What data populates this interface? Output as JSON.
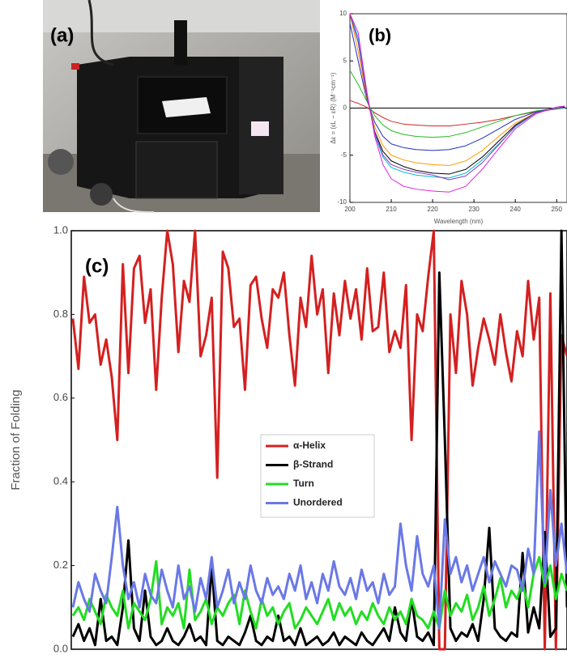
{
  "photo": {
    "label": "(a)"
  },
  "chart_data": [
    {
      "type": "line",
      "label": "(b)",
      "y_label": "Δε = (εL − εR) (M⁻¹cm⁻¹)",
      "x_label": "Wavelength (nm)",
      "x": [
        200,
        202,
        204,
        206,
        208,
        210,
        213,
        216,
        220,
        224,
        228,
        232,
        236,
        240,
        245,
        250,
        252
      ],
      "xlim": [
        200,
        252.5
      ],
      "xticks": [
        200,
        210,
        220,
        230,
        240,
        250
      ],
      "ylim": [
        -10,
        10
      ],
      "yticks": [
        -10,
        -5,
        0,
        5,
        10
      ],
      "zero_line": true,
      "series": [
        {
          "color": "#d42020",
          "values": [
            0.8,
            0.5,
            0.1,
            -0.5,
            -1.0,
            -1.4,
            -1.7,
            -1.8,
            -1.9,
            -1.9,
            -1.7,
            -1.5,
            -1.2,
            -0.8,
            -0.4,
            -0.1,
            0
          ]
        },
        {
          "color": "#22bb22",
          "values": [
            4,
            2.5,
            0.8,
            -0.8,
            -1.8,
            -2.4,
            -2.8,
            -3.0,
            -3.1,
            -3.0,
            -2.6,
            -2.0,
            -1.4,
            -0.8,
            -0.3,
            0,
            0
          ]
        },
        {
          "color": "#2030c0",
          "values": [
            9,
            5,
            1,
            -1.5,
            -3,
            -3.8,
            -4.2,
            -4.4,
            -4.5,
            -4.4,
            -4.0,
            -3.2,
            -2.2,
            -1.2,
            -0.4,
            0,
            0
          ]
        },
        {
          "color": "#ff9900",
          "values": [
            10,
            6,
            1.2,
            -2,
            -4,
            -5,
            -5.5,
            -5.8,
            -6,
            -6.1,
            -5.6,
            -4.5,
            -3,
            -1.6,
            -0.5,
            0,
            0
          ]
        },
        {
          "color": "#000000",
          "values": [
            10,
            7,
            1.5,
            -2.5,
            -4.6,
            -5.6,
            -6.2,
            -6.6,
            -6.9,
            -7.0,
            -6.5,
            -5.2,
            -3.5,
            -1.8,
            -0.5,
            0,
            0.1
          ]
        },
        {
          "color": "#00bbcc",
          "values": [
            10,
            7.5,
            1.8,
            -2.8,
            -5.2,
            -6.3,
            -6.8,
            -7.1,
            -7.3,
            -7.4,
            -6.9,
            -5.5,
            -3.8,
            -2.0,
            -0.5,
            0,
            0
          ]
        },
        {
          "color": "#8040c0",
          "values": [
            10,
            7,
            1.6,
            -2.6,
            -5,
            -6,
            -6.5,
            -6.8,
            -7.1,
            -7.6,
            -7.2,
            -5.8,
            -3.9,
            -1.9,
            -0.5,
            0.1,
            0.2
          ]
        },
        {
          "color": "#e020e0",
          "values": [
            10,
            8,
            2,
            -3,
            -6,
            -7.5,
            -8.3,
            -8.6,
            -8.8,
            -8.9,
            -8.3,
            -6.5,
            -4.3,
            -2.2,
            -0.6,
            0.1,
            0.2
          ]
        }
      ]
    },
    {
      "type": "line",
      "label": "(c)",
      "y_label": "Fraction of Folding",
      "categories": [
        null,
        null,
        null,
        null,
        null,
        null,
        null,
        null,
        null,
        null,
        null,
        null,
        null,
        null,
        null,
        null,
        null,
        null,
        null,
        null,
        null,
        null,
        null,
        null,
        null,
        null,
        null,
        null,
        null,
        null,
        null,
        null,
        null,
        null,
        null,
        null,
        null,
        null,
        null,
        null,
        null,
        null,
        null,
        null,
        null,
        null,
        null,
        null,
        null,
        null,
        null,
        null,
        null,
        null,
        null,
        null,
        null,
        null,
        null,
        null,
        null,
        null,
        null,
        null,
        null,
        null,
        null,
        null,
        null,
        null,
        null,
        null,
        null,
        null,
        null,
        null,
        null,
        null,
        null,
        null,
        null,
        null,
        null,
        null,
        null,
        null,
        null,
        null,
        null,
        null
      ],
      "ylim": [
        0,
        1
      ],
      "yticks": [
        {
          "value": 0,
          "label": "0.0"
        },
        0.2,
        0.4,
        0.6,
        0.8,
        {
          "value": 1,
          "label": "1.0"
        }
      ],
      "legend": "center",
      "series": [
        {
          "name": "α-Helix",
          "color": "#d42020",
          "values": [
            0.79,
            0.67,
            0.89,
            0.78,
            0.8,
            0.68,
            0.74,
            0.65,
            0.5,
            0.92,
            0.66,
            0.91,
            0.94,
            0.78,
            0.86,
            0.62,
            0.84,
            1.0,
            0.92,
            0.71,
            0.88,
            0.83,
            1.0,
            0.7,
            0.75,
            0.84,
            0.41,
            0.95,
            0.91,
            0.77,
            0.79,
            0.62,
            0.87,
            0.89,
            0.79,
            0.72,
            0.86,
            0.84,
            0.9,
            0.75,
            0.63,
            0.84,
            0.77,
            0.94,
            0.8,
            0.86,
            0.66,
            0.85,
            0.75,
            0.88,
            0.79,
            0.86,
            0.74,
            0.91,
            0.76,
            0.77,
            0.9,
            0.71,
            0.76,
            0.72,
            0.87,
            0.5,
            0.8,
            0.76,
            0.89,
            1.0,
            0.0,
            0.0,
            0.8,
            0.66,
            0.88,
            0.8,
            0.63,
            0.72,
            0.79,
            0.74,
            0.68,
            0.8,
            0.71,
            0.64,
            0.76,
            0.7,
            0.88,
            0.74,
            0.84,
            0.0,
            0.85,
            0.0,
            0.75,
            0.7
          ]
        },
        {
          "name": "β-Strand",
          "color": "#000000",
          "values": [
            0.03,
            0.06,
            0.02,
            0.05,
            0.01,
            0.12,
            0.02,
            0.03,
            0.01,
            0.1,
            0.26,
            0.05,
            0.02,
            0.14,
            0.03,
            0.01,
            0.02,
            0.05,
            0.02,
            0.01,
            0.03,
            0.06,
            0.02,
            0.03,
            0.01,
            0.2,
            0.02,
            0.01,
            0.03,
            0.02,
            0.01,
            0.04,
            0.08,
            0.02,
            0.01,
            0.03,
            0.02,
            0.08,
            0.02,
            0.03,
            0.01,
            0.05,
            0.01,
            0.02,
            0.03,
            0.01,
            0.02,
            0.04,
            0.01,
            0.03,
            0.02,
            0.01,
            0.04,
            0.02,
            0.01,
            0.03,
            0.05,
            0.02,
            0.1,
            0.04,
            0.02,
            0.12,
            0.03,
            0.02,
            0.04,
            0.01,
            0.9,
            0.5,
            0.05,
            0.02,
            0.04,
            0.03,
            0.06,
            0.02,
            0.12,
            0.29,
            0.05,
            0.03,
            0.02,
            0.04,
            0.03,
            0.23,
            0.04,
            0.1,
            0.05,
            0.28,
            0.03,
            0.05,
            1.0,
            0.1
          ]
        },
        {
          "name": "Turn",
          "color": "#22dd22",
          "values": [
            0.08,
            0.1,
            0.07,
            0.12,
            0.09,
            0.06,
            0.13,
            0.1,
            0.08,
            0.14,
            0.05,
            0.11,
            0.09,
            0.07,
            0.12,
            0.21,
            0.06,
            0.1,
            0.08,
            0.11,
            0.05,
            0.19,
            0.07,
            0.09,
            0.12,
            0.06,
            0.1,
            0.08,
            0.11,
            0.13,
            0.06,
            0.14,
            0.09,
            0.05,
            0.12,
            0.08,
            0.1,
            0.06,
            0.09,
            0.11,
            0.05,
            0.07,
            0.1,
            0.08,
            0.06,
            0.09,
            0.12,
            0.07,
            0.11,
            0.08,
            0.1,
            0.06,
            0.09,
            0.07,
            0.11,
            0.08,
            0.06,
            0.1,
            0.07,
            0.09,
            0.06,
            0.12,
            0.08,
            0.07,
            0.05,
            0.09,
            0.05,
            0.14,
            0.08,
            0.11,
            0.09,
            0.13,
            0.07,
            0.1,
            0.15,
            0.08,
            0.12,
            0.17,
            0.1,
            0.14,
            0.12,
            0.16,
            0.1,
            0.18,
            0.22,
            0.15,
            0.2,
            0.12,
            0.18,
            0.14
          ]
        },
        {
          "name": "Unordered",
          "color": "#6a78e6",
          "values": [
            0.1,
            0.16,
            0.12,
            0.09,
            0.18,
            0.14,
            0.11,
            0.22,
            0.34,
            0.2,
            0.12,
            0.16,
            0.1,
            0.18,
            0.13,
            0.11,
            0.19,
            0.14,
            0.1,
            0.2,
            0.12,
            0.15,
            0.09,
            0.17,
            0.12,
            0.22,
            0.1,
            0.14,
            0.19,
            0.11,
            0.16,
            0.12,
            0.2,
            0.14,
            0.11,
            0.17,
            0.13,
            0.15,
            0.12,
            0.18,
            0.14,
            0.2,
            0.12,
            0.16,
            0.11,
            0.18,
            0.14,
            0.21,
            0.15,
            0.13,
            0.17,
            0.12,
            0.19,
            0.14,
            0.16,
            0.11,
            0.18,
            0.13,
            0.15,
            0.3,
            0.2,
            0.14,
            0.27,
            0.18,
            0.15,
            0.2,
            0.05,
            0.31,
            0.18,
            0.22,
            0.16,
            0.2,
            0.14,
            0.18,
            0.22,
            0.16,
            0.21,
            0.18,
            0.15,
            0.2,
            0.19,
            0.14,
            0.24,
            0.18,
            0.52,
            0.16,
            0.38,
            0.2,
            0.3,
            0.18
          ]
        }
      ]
    }
  ]
}
